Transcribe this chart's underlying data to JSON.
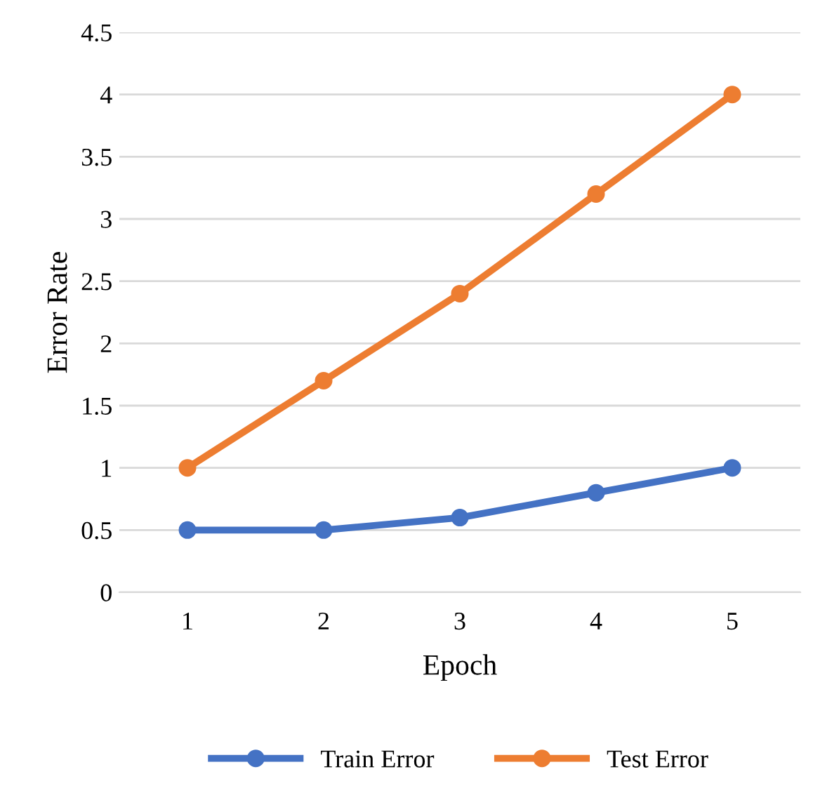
{
  "chart_data": {
    "type": "line",
    "xlabel": "Epoch",
    "ylabel": "Error Rate",
    "categories": [
      "1",
      "2",
      "3",
      "4",
      "5"
    ],
    "series": [
      {
        "name": "Train Error",
        "color": "#4472c4",
        "values": [
          0.5,
          0.5,
          0.6,
          0.8,
          1.0
        ]
      },
      {
        "name": "Test Error",
        "color": "#ed7d31",
        "values": [
          1.0,
          1.7,
          2.4,
          3.2,
          4.0
        ]
      }
    ],
    "ylim": [
      0,
      4.5
    ],
    "yticks": [
      0,
      0.5,
      1,
      1.5,
      2,
      2.5,
      3,
      3.5,
      4,
      4.5
    ],
    "grid": "y",
    "legend": "bottom",
    "marker": "circle",
    "line_style": "solid"
  }
}
